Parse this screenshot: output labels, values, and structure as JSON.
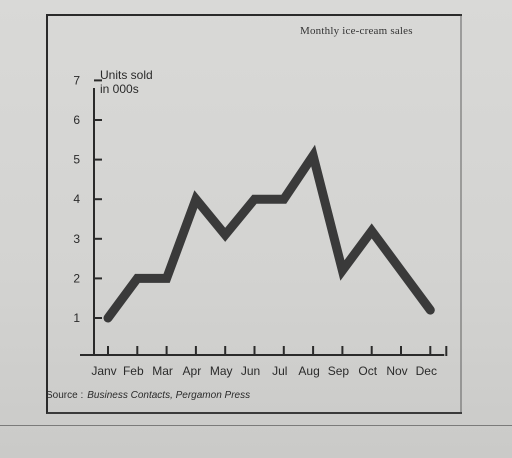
{
  "chart_data": {
    "type": "line",
    "title": "Monthly ice-cream sales",
    "ylabel": "Units sold\nin 000s",
    "xlabel": "",
    "categories": [
      "Janv",
      "Feb",
      "Mar",
      "Apr",
      "May",
      "Jun",
      "Jul",
      "Aug",
      "Sep",
      "Oct",
      "Nov",
      "Dec"
    ],
    "series": [
      {
        "values": [
          1.0,
          2.0,
          2.0,
          4.0,
          3.1,
          4.0,
          4.0,
          5.1,
          2.2,
          3.2,
          2.2,
          1.2
        ]
      }
    ],
    "y_ticks": [
      "1",
      "2",
      "3",
      "4",
      "5",
      "6",
      "7"
    ],
    "ylim": [
      0,
      7
    ],
    "grid": false,
    "line_color": "#3a3a3a",
    "axis_color": "#2a2a2a"
  },
  "source": {
    "label": "Source :",
    "text": "Business Contacts, Pergamon Press"
  }
}
